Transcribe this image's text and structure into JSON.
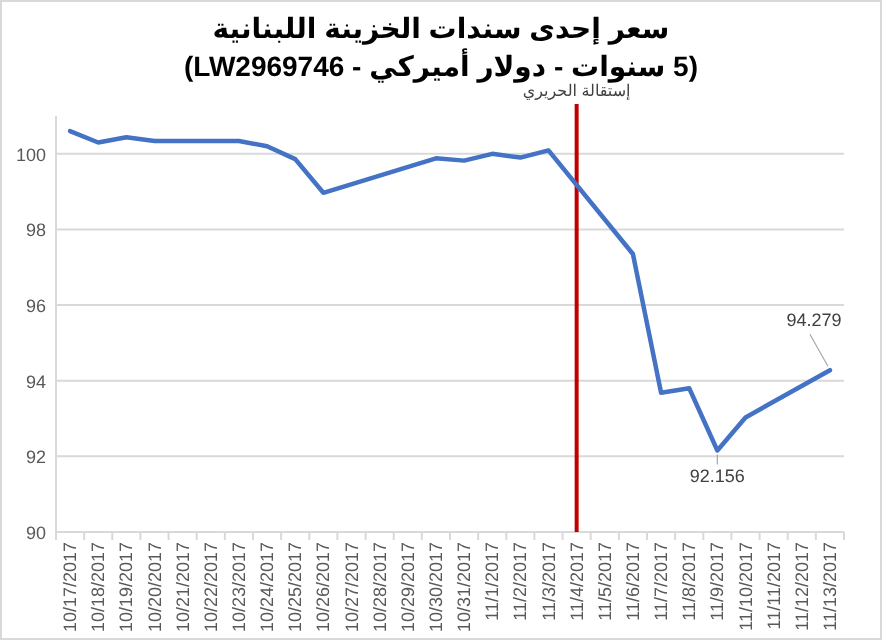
{
  "chart_data": {
    "type": "line",
    "title": "سعر إحدى سندات الخزينة اللبنانية",
    "subtitle": "(5 سنوات - دولار أميركي - LW2969746)",
    "series": [
      {
        "color": "#4472c4",
        "x": [
          "2017-10-17",
          "2017-10-18",
          "2017-10-19",
          "2017-10-20",
          "2017-10-23",
          "2017-10-24",
          "2017-10-25",
          "2017-10-26",
          "2017-10-30",
          "2017-10-31",
          "2017-11-01",
          "2017-11-02",
          "2017-11-03",
          "2017-11-06",
          "2017-11-07",
          "2017-11-08",
          "2017-11-09",
          "2017-11-10",
          "2017-11-13"
        ],
        "values": [
          100.6,
          100.3,
          100.44,
          100.34,
          100.34,
          100.2,
          99.86,
          98.97,
          99.88,
          99.82,
          100.0,
          99.9,
          100.09,
          97.35,
          93.68,
          93.8,
          92.156,
          93.03,
          94.279
        ],
        "value_labels": [
          null,
          null,
          null,
          null,
          null,
          null,
          null,
          null,
          null,
          null,
          null,
          null,
          null,
          null,
          null,
          null,
          "92.156",
          null,
          "94.279"
        ]
      }
    ],
    "xlim": [
      "2017-10-16T12:00",
      "2017-11-13T12:00"
    ],
    "xticks": [
      {
        "value": "2017-10-17",
        "label": "10/17/2017"
      },
      {
        "value": "2017-10-18",
        "label": "10/18/2017"
      },
      {
        "value": "2017-10-19",
        "label": "10/19/2017"
      },
      {
        "value": "2017-10-20",
        "label": "10/20/2017"
      },
      {
        "value": "2017-10-21",
        "label": "10/21/2017"
      },
      {
        "value": "2017-10-22",
        "label": "10/22/2017"
      },
      {
        "value": "2017-10-23",
        "label": "10/23/2017"
      },
      {
        "value": "2017-10-24",
        "label": "10/24/2017"
      },
      {
        "value": "2017-10-25",
        "label": "10/25/2017"
      },
      {
        "value": "2017-10-26",
        "label": "10/26/2017"
      },
      {
        "value": "2017-10-27",
        "label": "10/27/2017"
      },
      {
        "value": "2017-10-28",
        "label": "10/28/2017"
      },
      {
        "value": "2017-10-29",
        "label": "10/29/2017"
      },
      {
        "value": "2017-10-30",
        "label": "10/30/2017"
      },
      {
        "value": "2017-10-31",
        "label": "10/31/2017"
      },
      {
        "value": "2017-11-01",
        "label": "11/1/2017"
      },
      {
        "value": "2017-11-02",
        "label": "11/2/2017"
      },
      {
        "value": "2017-11-03",
        "label": "11/3/2017"
      },
      {
        "value": "2017-11-04",
        "label": "11/4/2017"
      },
      {
        "value": "2017-11-05",
        "label": "11/5/2017"
      },
      {
        "value": "2017-11-06",
        "label": "11/6/2017"
      },
      {
        "value": "2017-11-07",
        "label": "11/7/2017"
      },
      {
        "value": "2017-11-08",
        "label": "11/8/2017"
      },
      {
        "value": "2017-11-09",
        "label": "11/9/2017"
      },
      {
        "value": "2017-11-10",
        "label": "11/10/2017"
      },
      {
        "value": "2017-11-11",
        "label": "11/11/2017"
      },
      {
        "value": "2017-11-12",
        "label": "11/12/2017"
      },
      {
        "value": "2017-11-13",
        "label": "11/13/2017"
      }
    ],
    "ylim": [
      90,
      101
    ],
    "yticks": [
      90,
      92,
      94,
      96,
      98,
      100
    ],
    "grid": "y",
    "marker": "none",
    "line_style": "solid",
    "ref_lines": [
      {
        "axis": "x",
        "value": "2017-11-04",
        "label": "إستقالة الحريري",
        "color": "#c00000"
      }
    ]
  }
}
